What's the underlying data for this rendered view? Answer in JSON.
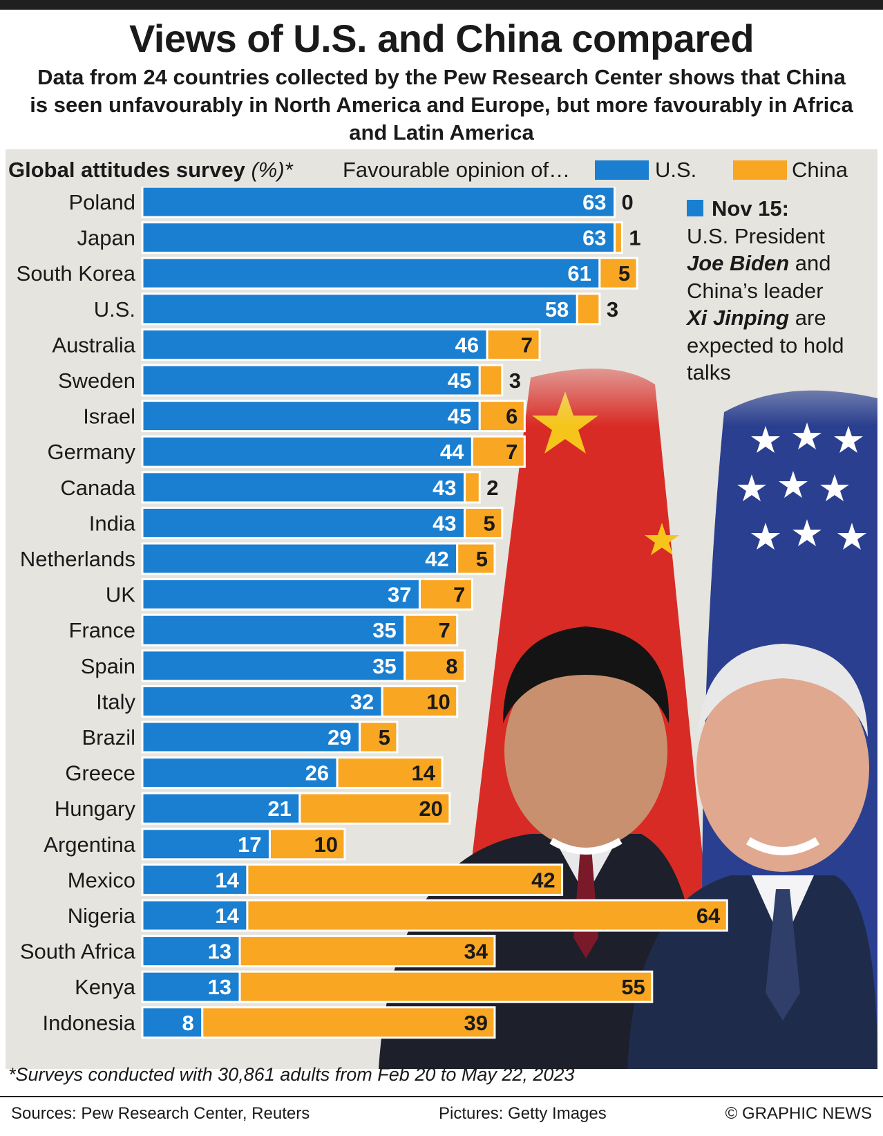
{
  "title": "Views of U.S. and China compared",
  "subtitle": "Data from 24 countries collected by the Pew Research Center shows that China is seen unfavourably in North America and Europe, but more favourably in Africa and Latin America",
  "legend": {
    "survey_title": "Global attitudes survey",
    "unit": "(%)*",
    "favourable": "Favourable opinion of…",
    "us_label": "U.S.",
    "china_label": "China"
  },
  "note": {
    "date": "Nov 15:",
    "line1": "U.S. President",
    "name1": "Joe Biden",
    "text2": "and China’s leader",
    "name2": "Xi Jinping",
    "text3": "are expected to hold talks"
  },
  "footnote": "*Surveys conducted with 30,861 adults from Feb 20 to May 22, 2023",
  "footer": {
    "sources": "Sources: Pew Research Center, Reuters",
    "pictures": "Pictures: Getty Images",
    "credit": "© GRAPHIC NEWS"
  },
  "colors": {
    "us": "#1a7fd1",
    "china": "#f9a623",
    "panel": "#e6e4de"
  },
  "chart_data": {
    "type": "bar",
    "orientation": "horizontal",
    "stacked": true,
    "categories": [
      "Poland",
      "Japan",
      "South Korea",
      "U.S.",
      "Australia",
      "Sweden",
      "Israel",
      "Germany",
      "Canada",
      "India",
      "Netherlands",
      "UK",
      "France",
      "Spain",
      "Italy",
      "Brazil",
      "Greece",
      "Hungary",
      "Argentina",
      "Mexico",
      "Nigeria",
      "South Africa",
      "Kenya",
      "Indonesia"
    ],
    "series": [
      {
        "name": "U.S.",
        "color": "#1a7fd1",
        "values": [
          63,
          63,
          61,
          58,
          46,
          45,
          45,
          44,
          43,
          43,
          42,
          37,
          35,
          35,
          32,
          29,
          26,
          21,
          17,
          14,
          14,
          13,
          13,
          8
        ]
      },
      {
        "name": "China",
        "color": "#f9a623",
        "values": [
          0,
          1,
          5,
          3,
          7,
          3,
          6,
          7,
          2,
          5,
          5,
          7,
          7,
          8,
          10,
          5,
          14,
          20,
          10,
          42,
          64,
          34,
          55,
          39
        ]
      }
    ],
    "legend": "top-right"
  }
}
